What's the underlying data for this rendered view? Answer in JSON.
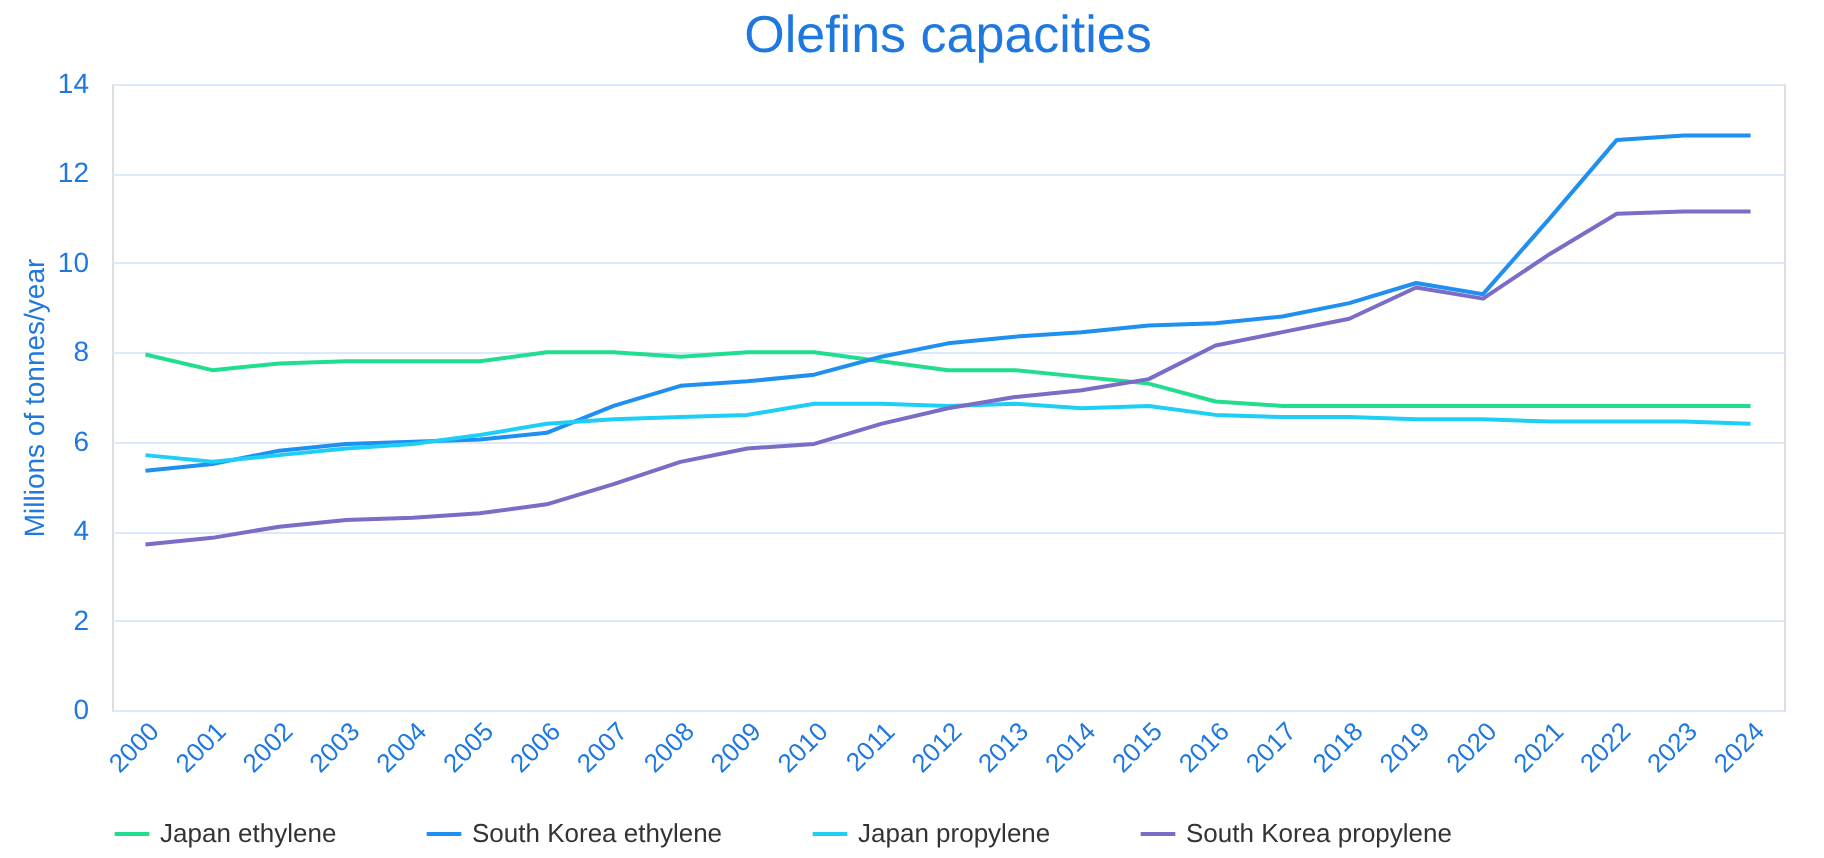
{
  "chart_data": {
    "type": "line",
    "title": "Olefins capacities",
    "ylabel": "Millions of tonnes/year",
    "categories": [
      "2000",
      "2001",
      "2002",
      "2003",
      "2004",
      "2005",
      "2006",
      "2007",
      "2008",
      "2009",
      "2010",
      "2011",
      "2012",
      "2013",
      "2014",
      "2015",
      "2016",
      "2017",
      "2018",
      "2019",
      "2020",
      "2021",
      "2022",
      "2023",
      "2024"
    ],
    "series": [
      {
        "name": "Japan ethylene",
        "color": "#22dd8e",
        "values": [
          7.95,
          7.6,
          7.75,
          7.8,
          7.8,
          7.8,
          8.0,
          8.0,
          7.9,
          8.0,
          8.0,
          7.8,
          7.6,
          7.6,
          7.45,
          7.3,
          6.9,
          6.8,
          6.8,
          6.8,
          6.8,
          6.8,
          6.8,
          6.8,
          6.8
        ]
      },
      {
        "name": "South Korea ethylene",
        "color": "#1f8ff0",
        "values": [
          5.35,
          5.5,
          5.8,
          5.95,
          6.0,
          6.05,
          6.2,
          6.8,
          7.25,
          7.35,
          7.5,
          7.9,
          8.2,
          8.35,
          8.45,
          8.6,
          8.65,
          8.8,
          9.1,
          9.55,
          9.3,
          11.0,
          12.75,
          12.85,
          12.85
        ]
      },
      {
        "name": "Japan propylene",
        "color": "#1ecef5",
        "values": [
          5.7,
          5.55,
          5.7,
          5.85,
          5.95,
          6.15,
          6.4,
          6.5,
          6.55,
          6.6,
          6.85,
          6.85,
          6.8,
          6.85,
          6.75,
          6.8,
          6.6,
          6.55,
          6.55,
          6.5,
          6.5,
          6.45,
          6.45,
          6.45,
          6.4
        ]
      },
      {
        "name": "South Korea propylene",
        "color": "#7a6cc7",
        "values": [
          3.7,
          3.85,
          4.1,
          4.25,
          4.3,
          4.4,
          4.6,
          5.05,
          5.55,
          5.85,
          5.95,
          6.4,
          6.75,
          7.0,
          7.15,
          7.4,
          8.15,
          8.45,
          8.75,
          9.45,
          9.2,
          10.2,
          11.1,
          11.15,
          11.15
        ]
      }
    ],
    "ylim": [
      0,
      14
    ],
    "yticks": [
      0,
      2,
      4,
      6,
      8,
      10,
      12,
      14
    ],
    "grid": "y",
    "legend": "bottom",
    "marker": "none",
    "line_style": "solid"
  }
}
